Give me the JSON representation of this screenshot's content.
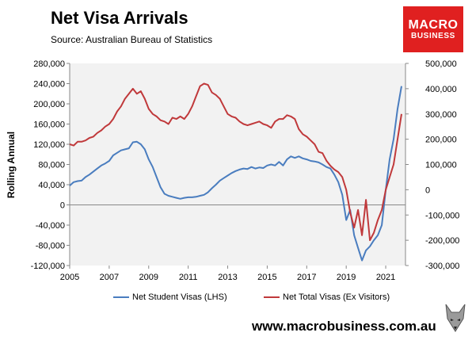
{
  "header": {
    "title": "Net Visa Arrivals",
    "source": "Source: Australian Bureau of Statistics"
  },
  "logo": {
    "line1": "MACRO",
    "line2": "BUSINESS"
  },
  "footer": {
    "url": "www.macrobusiness.com.au"
  },
  "colors": {
    "student": "#4a7dbf",
    "total": "#c0393b",
    "plot_bg": "#f2f2f2",
    "logo_bg": "#e02020"
  },
  "chart_data": {
    "type": "line",
    "title": "Net Visa Arrivals",
    "ylabel": "Rolling Annual",
    "xlabel": "",
    "x_ticks": [
      "2005",
      "2007",
      "2009",
      "2011",
      "2013",
      "2015",
      "2017",
      "2019",
      "2021"
    ],
    "xlim": [
      2005,
      2022
    ],
    "ylim_left": [
      -120000,
      280000
    ],
    "ylim_right": [
      -300000,
      500000
    ],
    "left_tick_labels": [
      "280,000",
      "240,000",
      "200,000",
      "160,000",
      "120,000",
      "80,000",
      "40,000",
      "0",
      "-40,000",
      "-80,000",
      "-120,000"
    ],
    "right_tick_labels": [
      "500,000",
      "400,000",
      "300,000",
      "200,000",
      "100,000",
      "0",
      "-100,000",
      "-200,000",
      "-300,000"
    ],
    "grid": false,
    "legend_position": "bottom",
    "series": [
      {
        "name": "Net Student Visas (LHS)",
        "axis": "left",
        "color": "#4a7dbf",
        "x": [
          2005.0,
          2005.2,
          2005.4,
          2005.6,
          2005.8,
          2006.0,
          2006.2,
          2006.4,
          2006.6,
          2006.8,
          2007.0,
          2007.2,
          2007.4,
          2007.6,
          2007.8,
          2008.0,
          2008.2,
          2008.4,
          2008.6,
          2008.8,
          2009.0,
          2009.2,
          2009.4,
          2009.6,
          2009.8,
          2010.0,
          2010.2,
          2010.4,
          2010.6,
          2010.8,
          2011.0,
          2011.2,
          2011.4,
          2011.6,
          2011.8,
          2012.0,
          2012.2,
          2012.4,
          2012.6,
          2012.8,
          2013.0,
          2013.2,
          2013.4,
          2013.6,
          2013.8,
          2014.0,
          2014.2,
          2014.4,
          2014.6,
          2014.8,
          2015.0,
          2015.2,
          2015.4,
          2015.6,
          2015.8,
          2016.0,
          2016.2,
          2016.4,
          2016.6,
          2016.8,
          2017.0,
          2017.2,
          2017.4,
          2017.6,
          2017.8,
          2018.0,
          2018.2,
          2018.4,
          2018.6,
          2018.8,
          2019.0,
          2019.2,
          2019.4,
          2019.6,
          2019.8,
          2020.0,
          2020.2,
          2020.4,
          2020.6,
          2020.8,
          2021.0,
          2021.2,
          2021.4,
          2021.6,
          2021.8
        ],
        "values": [
          38000,
          45000,
          47000,
          48000,
          55000,
          60000,
          66000,
          72000,
          78000,
          82000,
          87000,
          98000,
          103000,
          108000,
          110000,
          112000,
          124000,
          125000,
          120000,
          110000,
          90000,
          75000,
          55000,
          35000,
          22000,
          18000,
          16000,
          14000,
          12000,
          14000,
          15000,
          15000,
          16000,
          18000,
          20000,
          25000,
          33000,
          40000,
          48000,
          53000,
          58000,
          63000,
          67000,
          70000,
          72000,
          71000,
          75000,
          72000,
          74000,
          73000,
          78000,
          80000,
          78000,
          85000,
          78000,
          90000,
          96000,
          93000,
          96000,
          92000,
          90000,
          87000,
          86000,
          84000,
          80000,
          75000,
          72000,
          60000,
          45000,
          20000,
          -30000,
          -10000,
          -60000,
          -85000,
          -110000,
          -90000,
          -82000,
          -70000,
          -60000,
          -40000,
          30000,
          90000,
          130000,
          190000,
          235000
        ]
      },
      {
        "name": "Net Total Visas (Ex Visitors)",
        "axis": "right",
        "color": "#c0393b",
        "x": [
          2005.0,
          2005.2,
          2005.4,
          2005.6,
          2005.8,
          2006.0,
          2006.2,
          2006.4,
          2006.6,
          2006.8,
          2007.0,
          2007.2,
          2007.4,
          2007.6,
          2007.8,
          2008.0,
          2008.2,
          2008.4,
          2008.6,
          2008.8,
          2009.0,
          2009.2,
          2009.4,
          2009.6,
          2009.8,
          2010.0,
          2010.2,
          2010.4,
          2010.6,
          2010.8,
          2011.0,
          2011.2,
          2011.4,
          2011.6,
          2011.8,
          2012.0,
          2012.2,
          2012.4,
          2012.6,
          2012.8,
          2013.0,
          2013.2,
          2013.4,
          2013.6,
          2013.8,
          2014.0,
          2014.2,
          2014.4,
          2014.6,
          2014.8,
          2015.0,
          2015.2,
          2015.4,
          2015.6,
          2015.8,
          2016.0,
          2016.2,
          2016.4,
          2016.6,
          2016.8,
          2017.0,
          2017.2,
          2017.4,
          2017.6,
          2017.8,
          2018.0,
          2018.2,
          2018.4,
          2018.6,
          2018.8,
          2019.0,
          2019.2,
          2019.4,
          2019.6,
          2019.8,
          2020.0,
          2020.2,
          2020.4,
          2020.6,
          2020.8,
          2021.0,
          2021.2,
          2021.4,
          2021.6,
          2021.8
        ],
        "values": [
          180000,
          175000,
          190000,
          190000,
          195000,
          205000,
          210000,
          225000,
          235000,
          250000,
          260000,
          280000,
          310000,
          330000,
          360000,
          380000,
          400000,
          380000,
          390000,
          360000,
          320000,
          300000,
          290000,
          275000,
          270000,
          260000,
          285000,
          280000,
          290000,
          280000,
          300000,
          330000,
          370000,
          410000,
          420000,
          415000,
          385000,
          375000,
          360000,
          330000,
          300000,
          290000,
          285000,
          270000,
          260000,
          255000,
          260000,
          265000,
          270000,
          260000,
          255000,
          245000,
          270000,
          280000,
          280000,
          295000,
          290000,
          280000,
          240000,
          220000,
          210000,
          195000,
          180000,
          150000,
          145000,
          115000,
          95000,
          80000,
          70000,
          50000,
          0,
          -90000,
          -150000,
          -80000,
          -180000,
          -40000,
          -200000,
          -170000,
          -120000,
          -80000,
          0,
          50000,
          100000,
          200000,
          300000
        ]
      }
    ]
  }
}
